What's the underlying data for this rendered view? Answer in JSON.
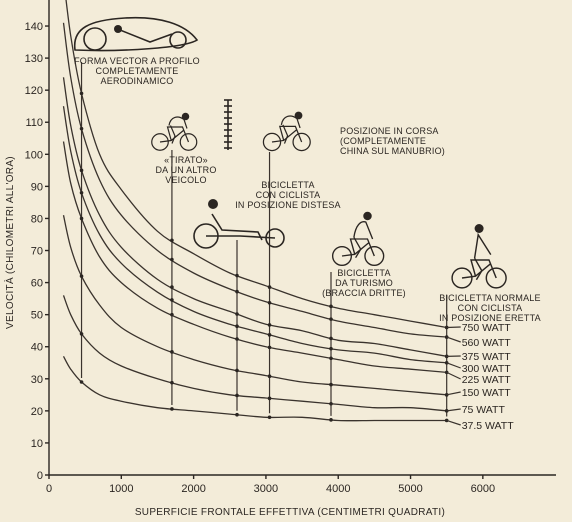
{
  "chart_data": {
    "type": "line",
    "title": "",
    "xlabel": "SUPERFICIE FRONTALE EFFETTIVA (CENTIMETRI QUADRATI)",
    "ylabel": "VELOCITÀ (CHILOMETRI ALL'ORA)",
    "xlim": [
      0,
      6500
    ],
    "ylim": [
      0,
      145
    ],
    "x_ticks": [
      0,
      1000,
      2000,
      3000,
      4000,
      5000,
      6000
    ],
    "y_ticks": [
      0,
      10,
      20,
      30,
      40,
      50,
      60,
      70,
      80,
      90,
      100,
      110,
      120,
      130,
      140
    ],
    "grid": false,
    "x": [
      200,
      300,
      450,
      700,
      1000,
      1500,
      2000,
      2500,
      3000,
      3500,
      4000,
      4500,
      5000,
      5500
    ],
    "series": [
      {
        "name": "750 WATT",
        "values": [
          155,
          137,
          119,
          100,
          89,
          76,
          69,
          63,
          59,
          55,
          52,
          50,
          48,
          46
        ]
      },
      {
        "name": "560 WATT",
        "values": [
          141,
          124,
          108,
          92,
          81,
          70,
          63,
          58,
          54,
          51,
          48,
          46,
          44,
          43
        ]
      },
      {
        "name": "375 WATT",
        "values": [
          124,
          109,
          95,
          81,
          71,
          61,
          55,
          51,
          47,
          45,
          42,
          41,
          39,
          37
        ]
      },
      {
        "name": "300 WATT",
        "values": [
          115,
          101,
          88,
          75,
          66,
          57,
          51,
          47,
          44,
          41,
          39,
          38,
          36,
          35
        ]
      },
      {
        "name": "225 WATT",
        "values": [
          104,
          91,
          80,
          68,
          60,
          52,
          47,
          43,
          40,
          38,
          36,
          34,
          33,
          32
        ]
      },
      {
        "name": "150 WATT",
        "values": [
          81,
          71,
          62,
          53,
          46,
          40,
          36,
          33,
          31,
          29,
          28,
          27,
          26,
          25
        ]
      },
      {
        "name": "75 WATT",
        "values": [
          56,
          50,
          44,
          38,
          34,
          30,
          27,
          25,
          24,
          23,
          22,
          21,
          21,
          20
        ]
      },
      {
        "name": "37.5 WATT",
        "values": [
          37,
          33,
          29,
          25,
          23,
          21,
          20,
          19,
          18,
          18,
          17,
          17,
          17,
          17
        ]
      }
    ],
    "markers": [
      {
        "label": "FORMA VECTOR A PROFILO COMPLETAMENTE AERODINAMICO",
        "x": 450,
        "lines": [
          "FORMA VECTOR A PROFILO",
          "COMPLETAMENTE",
          "AERODINAMICO"
        ]
      },
      {
        "label": "«TIRATO» DA UN ALTRO VEICOLO",
        "x": 1700,
        "lines": [
          "«TIRATO»",
          "DA UN ALTRO",
          "VEICOLO"
        ]
      },
      {
        "label": "BICICLETTA CON CICLISTA IN POSIZIONE DISTESA",
        "x": 2600,
        "lines": [
          "BICICLETTA",
          "CON CICLISTA",
          "IN POSIZIONE DISTESA"
        ]
      },
      {
        "label": "POSIZIONE IN CORSA (COMPLETAMENTE CHINA SUL MANUBRIO)",
        "x": 3050,
        "lines": [
          "POSIZIONE IN CORSA",
          "(COMPLETAMENTE",
          "CHINA SUL MANUBRIO)"
        ]
      },
      {
        "label": "BICICLETTA DA TURISMO (BRACCIA DRITTE)",
        "x": 3900,
        "lines": [
          "BICICLETTA",
          "DA TURISMO",
          "(BRACCIA DRITTE)"
        ]
      },
      {
        "label": "BICICLETTA NORMALE CON CICLISTA IN POSIZIONE ERETTA",
        "x": 5500,
        "lines": [
          "BICICLETTA NORMALE",
          "CON CICLISTA",
          "IN POSIZIONE ERETTA"
        ]
      }
    ]
  }
}
